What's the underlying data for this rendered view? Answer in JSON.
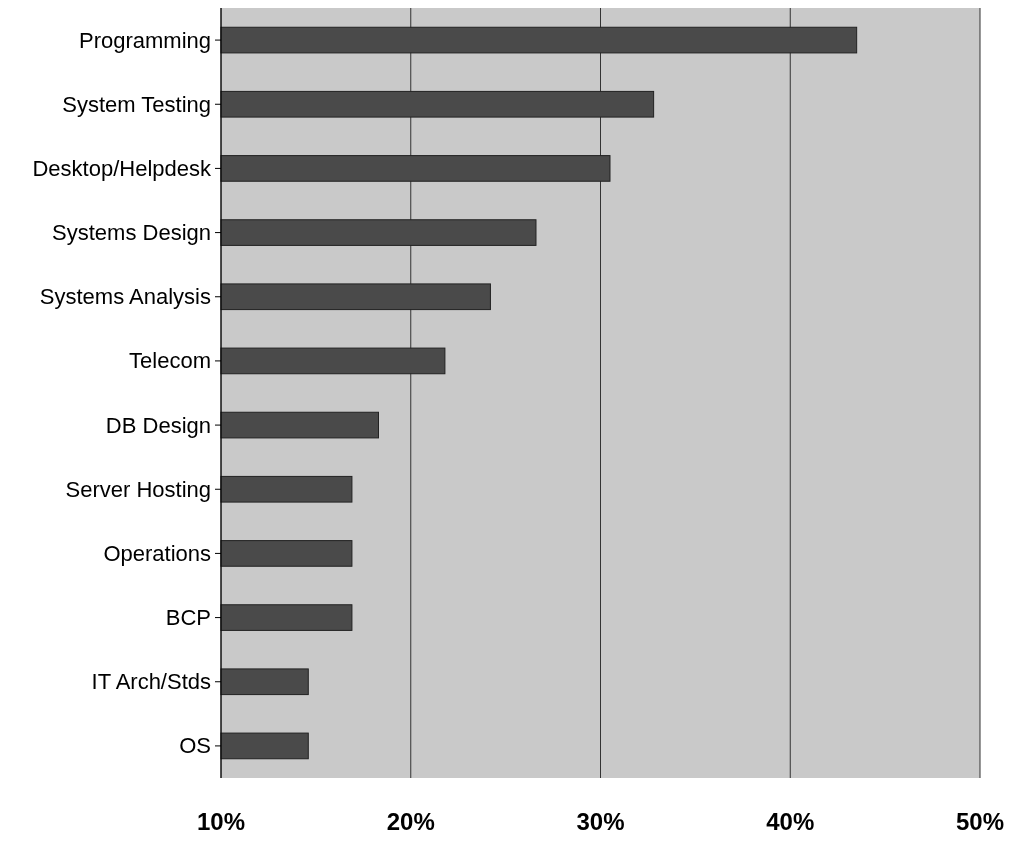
{
  "chart_data": {
    "type": "bar",
    "orientation": "horizontal",
    "categories": [
      "Programming",
      "System Testing",
      "Desktop/Helpdesk",
      "Systems Design",
      "Systems Analysis",
      "Telecom",
      "DB Design",
      "Server Hosting",
      "Operations",
      "BCP",
      "IT Arch/Stds",
      "OS"
    ],
    "values": [
      43.5,
      32.8,
      30.5,
      26.6,
      24.2,
      21.8,
      18.3,
      16.9,
      16.9,
      16.9,
      14.6,
      14.6
    ],
    "color": "#4a4a4a",
    "xlim": [
      10,
      50
    ],
    "xticks": [
      {
        "value": 10,
        "label": "10%"
      },
      {
        "value": 20,
        "label": "20%"
      },
      {
        "value": 30,
        "label": "30%"
      },
      {
        "value": 40,
        "label": "40%"
      },
      {
        "value": 50,
        "label": "50%"
      }
    ],
    "grid": "x"
  }
}
